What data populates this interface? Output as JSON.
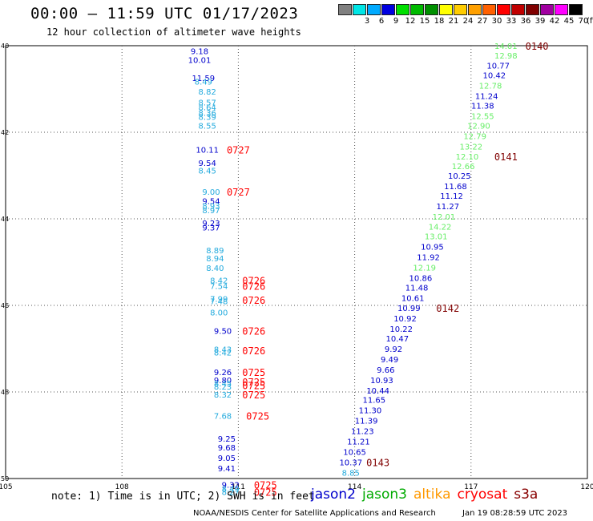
{
  "header": {
    "title": "00:00 – 11:59 UTC 01/17/2023",
    "subtitle": "12 hour collection of altimeter wave heights"
  },
  "legend": {
    "unit": "(ft)",
    "bins": [
      {
        "label": "",
        "color": "#808080"
      },
      {
        "label": "3",
        "color": "#00e5e5"
      },
      {
        "label": "6",
        "color": "#00aaff"
      },
      {
        "label": "9",
        "color": "#0000e0"
      },
      {
        "label": "12",
        "color": "#00e000"
      },
      {
        "label": "15",
        "color": "#00bb00"
      },
      {
        "label": "18",
        "color": "#009000"
      },
      {
        "label": "21",
        "color": "#ffff00"
      },
      {
        "label": "24",
        "color": "#ffcc00"
      },
      {
        "label": "27",
        "color": "#ffa000"
      },
      {
        "label": "30",
        "color": "#ff6000"
      },
      {
        "label": "33",
        "color": "#ff0000"
      },
      {
        "label": "36",
        "color": "#c00000"
      },
      {
        "label": "39",
        "color": "#800000"
      },
      {
        "label": "42",
        "color": "#a000a0"
      },
      {
        "label": "45",
        "color": "#ff00ff"
      },
      {
        "label": "70",
        "color": "#000000"
      }
    ]
  },
  "map": {
    "lon_ticks": [
      "105",
      "108",
      "111",
      "114",
      "117",
      "120"
    ],
    "lat_ticks": [
      "40",
      "42",
      "44",
      "46",
      "48",
      "50"
    ]
  },
  "tracks": [
    {
      "name": "west",
      "points": [
        {
          "lon": 110.0,
          "lat": 40.12,
          "v": "9.18",
          "c": "#0000cc"
        },
        {
          "lon": 110.0,
          "lat": 40.32,
          "v": "10.01",
          "c": "#0000cc"
        },
        {
          "lon": 110.1,
          "lat": 40.74,
          "v": "11.59",
          "c": "#0000cc"
        },
        {
          "lon": 110.1,
          "lat": 40.82,
          "v": "8.49",
          "c": "#22aadd"
        },
        {
          "lon": 110.2,
          "lat": 41.06,
          "v": "8.82",
          "c": "#22aadd"
        },
        {
          "lon": 110.2,
          "lat": 41.31,
          "v": "8.57",
          "c": "#22aadd"
        },
        {
          "lon": 110.2,
          "lat": 41.42,
          "v": "8.64",
          "c": "#22aadd"
        },
        {
          "lon": 110.2,
          "lat": 41.55,
          "v": "8.36",
          "c": "#22aadd"
        },
        {
          "lon": 110.2,
          "lat": 41.64,
          "v": "8.39",
          "c": "#22aadd"
        },
        {
          "lon": 110.2,
          "lat": 41.84,
          "v": "8.55",
          "c": "#22aadd"
        },
        {
          "lon": 110.2,
          "lat": 42.4,
          "v": "10.11",
          "c": "#0000cc"
        },
        {
          "lon": 110.2,
          "lat": 42.7,
          "v": "9.54",
          "c": "#0000cc"
        },
        {
          "lon": 110.2,
          "lat": 42.88,
          "v": "8.45",
          "c": "#22aadd"
        },
        {
          "lon": 110.3,
          "lat": 43.37,
          "v": "9.00",
          "c": "#22aadd"
        },
        {
          "lon": 110.3,
          "lat": 43.58,
          "v": "9.54",
          "c": "#0000cc"
        },
        {
          "lon": 110.3,
          "lat": 43.69,
          "v": "8.93",
          "c": "#22aadd"
        },
        {
          "lon": 110.3,
          "lat": 43.8,
          "v": "8.97",
          "c": "#22aadd"
        },
        {
          "lon": 110.3,
          "lat": 44.09,
          "v": "9.23",
          "c": "#0000cc"
        },
        {
          "lon": 110.3,
          "lat": 44.19,
          "v": "9.37",
          "c": "#0000cc"
        },
        {
          "lon": 110.4,
          "lat": 44.72,
          "v": "8.89",
          "c": "#22aadd"
        },
        {
          "lon": 110.4,
          "lat": 44.91,
          "v": "8.94",
          "c": "#22aadd"
        },
        {
          "lon": 110.4,
          "lat": 45.13,
          "v": "8.40",
          "c": "#22aadd"
        },
        {
          "lon": 110.5,
          "lat": 45.42,
          "v": "8.42",
          "c": "#22aadd"
        },
        {
          "lon": 110.5,
          "lat": 45.55,
          "v": "7.54",
          "c": "#22aadd"
        },
        {
          "lon": 110.5,
          "lat": 45.84,
          "v": "7.99",
          "c": "#22aadd"
        },
        {
          "lon": 110.5,
          "lat": 45.9,
          "v": "7.48",
          "c": "#22aadd"
        },
        {
          "lon": 110.5,
          "lat": 46.16,
          "v": "8.00",
          "c": "#22aadd"
        },
        {
          "lon": 110.6,
          "lat": 46.58,
          "v": "9.50",
          "c": "#0000cc"
        },
        {
          "lon": 110.6,
          "lat": 47.01,
          "v": "8.43",
          "c": "#22aadd"
        },
        {
          "lon": 110.6,
          "lat": 47.08,
          "v": "8.42",
          "c": "#22aadd"
        },
        {
          "lon": 110.6,
          "lat": 47.54,
          "v": "9.26",
          "c": "#0000cc"
        },
        {
          "lon": 110.6,
          "lat": 47.72,
          "v": "9.80",
          "c": "#0000cc"
        },
        {
          "lon": 110.6,
          "lat": 47.8,
          "v": "8.45",
          "c": "#22aadd"
        },
        {
          "lon": 110.6,
          "lat": 47.87,
          "v": "8.23",
          "c": "#22aadd"
        },
        {
          "lon": 110.6,
          "lat": 48.06,
          "v": "8.32",
          "c": "#22aadd"
        },
        {
          "lon": 110.6,
          "lat": 48.55,
          "v": "7.68",
          "c": "#22aadd"
        },
        {
          "lon": 110.7,
          "lat": 49.07,
          "v": "9.25",
          "c": "#0000cc"
        },
        {
          "lon": 110.7,
          "lat": 49.28,
          "v": "9.68",
          "c": "#0000cc"
        },
        {
          "lon": 110.7,
          "lat": 49.52,
          "v": "9.05",
          "c": "#0000cc"
        },
        {
          "lon": 110.7,
          "lat": 49.76,
          "v": "9.41",
          "c": "#0000cc"
        },
        {
          "lon": 110.8,
          "lat": 50.14,
          "v": "9.32",
          "c": "#0000cc"
        },
        {
          "lon": 110.8,
          "lat": 50.23,
          "v": "8.49",
          "c": "#22aadd"
        },
        {
          "lon": 110.8,
          "lat": 50.31,
          "v": "8.27",
          "c": "#22aadd"
        }
      ],
      "times": [
        {
          "lon": 111.0,
          "lat": 42.4,
          "t": "0727",
          "c": "#ff0000"
        },
        {
          "lon": 111.0,
          "lat": 43.37,
          "t": "0727",
          "c": "#ff0000"
        },
        {
          "lon": 111.4,
          "lat": 45.42,
          "t": "0726",
          "c": "#ff0000"
        },
        {
          "lon": 111.4,
          "lat": 45.55,
          "t": "0726",
          "c": "#ff0000"
        },
        {
          "lon": 111.4,
          "lat": 45.87,
          "t": "0726",
          "c": "#ff0000"
        },
        {
          "lon": 111.4,
          "lat": 46.58,
          "t": "0726",
          "c": "#ff0000"
        },
        {
          "lon": 111.4,
          "lat": 47.04,
          "t": "0726",
          "c": "#ff0000"
        },
        {
          "lon": 111.4,
          "lat": 47.54,
          "t": "0725",
          "c": "#ff0000"
        },
        {
          "lon": 111.4,
          "lat": 47.76,
          "t": "0725",
          "c": "#ff0000"
        },
        {
          "lon": 111.4,
          "lat": 47.84,
          "t": "0725",
          "c": "#ff0000"
        },
        {
          "lon": 111.4,
          "lat": 48.06,
          "t": "0725",
          "c": "#ff0000"
        },
        {
          "lon": 111.5,
          "lat": 48.55,
          "t": "0725",
          "c": "#ff0000"
        },
        {
          "lon": 111.7,
          "lat": 50.14,
          "t": "0725",
          "c": "#ff0000"
        },
        {
          "lon": 111.7,
          "lat": 50.31,
          "t": "0725",
          "c": "#ff0000"
        }
      ]
    },
    {
      "name": "east",
      "points": [
        {
          "lon": 117.9,
          "lat": 40.0,
          "v": "14.01",
          "c": "#66ee66"
        },
        {
          "lon": 117.9,
          "lat": 40.22,
          "v": "12.98",
          "c": "#66ee66"
        },
        {
          "lon": 117.7,
          "lat": 40.45,
          "v": "10.77",
          "c": "#0000cc"
        },
        {
          "lon": 117.6,
          "lat": 40.68,
          "v": "10.42",
          "c": "#0000cc"
        },
        {
          "lon": 117.5,
          "lat": 40.92,
          "v": "12.78",
          "c": "#66ee66"
        },
        {
          "lon": 117.4,
          "lat": 41.16,
          "v": "11.24",
          "c": "#0000cc"
        },
        {
          "lon": 117.3,
          "lat": 41.38,
          "v": "11.38",
          "c": "#0000cc"
        },
        {
          "lon": 117.3,
          "lat": 41.62,
          "v": "12.55",
          "c": "#66ee66"
        },
        {
          "lon": 117.2,
          "lat": 41.84,
          "v": "12.90",
          "c": "#66ee66"
        },
        {
          "lon": 117.1,
          "lat": 42.08,
          "v": "12.79",
          "c": "#66ee66"
        },
        {
          "lon": 117.0,
          "lat": 42.32,
          "v": "13.22",
          "c": "#66ee66"
        },
        {
          "lon": 116.9,
          "lat": 42.56,
          "v": "12.10",
          "c": "#66ee66"
        },
        {
          "lon": 116.8,
          "lat": 42.78,
          "v": "12.66",
          "c": "#66ee66"
        },
        {
          "lon": 116.7,
          "lat": 43.0,
          "v": "10.25",
          "c": "#0000cc"
        },
        {
          "lon": 116.6,
          "lat": 43.24,
          "v": "11.68",
          "c": "#0000cc"
        },
        {
          "lon": 116.5,
          "lat": 43.46,
          "v": "11.12",
          "c": "#0000cc"
        },
        {
          "lon": 116.4,
          "lat": 43.7,
          "v": "11.27",
          "c": "#0000cc"
        },
        {
          "lon": 116.3,
          "lat": 43.94,
          "v": "12.01",
          "c": "#66ee66"
        },
        {
          "lon": 116.2,
          "lat": 44.18,
          "v": "14.22",
          "c": "#66ee66"
        },
        {
          "lon": 116.1,
          "lat": 44.4,
          "v": "13.01",
          "c": "#66ee66"
        },
        {
          "lon": 116.0,
          "lat": 44.64,
          "v": "10.95",
          "c": "#0000cc"
        },
        {
          "lon": 115.9,
          "lat": 44.88,
          "v": "11.92",
          "c": "#0000cc"
        },
        {
          "lon": 115.8,
          "lat": 45.12,
          "v": "12.19",
          "c": "#66ee66"
        },
        {
          "lon": 115.7,
          "lat": 45.36,
          "v": "10.86",
          "c": "#0000cc"
        },
        {
          "lon": 115.6,
          "lat": 45.58,
          "v": "11.48",
          "c": "#0000cc"
        },
        {
          "lon": 115.5,
          "lat": 45.82,
          "v": "10.61",
          "c": "#0000cc"
        },
        {
          "lon": 115.4,
          "lat": 46.06,
          "v": "10.99",
          "c": "#0000cc"
        },
        {
          "lon": 115.3,
          "lat": 46.3,
          "v": "10.92",
          "c": "#0000cc"
        },
        {
          "lon": 115.2,
          "lat": 46.54,
          "v": "10.22",
          "c": "#0000cc"
        },
        {
          "lon": 115.1,
          "lat": 46.76,
          "v": "10.47",
          "c": "#0000cc"
        },
        {
          "lon": 115.0,
          "lat": 47.0,
          "v": "9.92",
          "c": "#0000cc"
        },
        {
          "lon": 114.9,
          "lat": 47.24,
          "v": "9.49",
          "c": "#0000cc"
        },
        {
          "lon": 114.8,
          "lat": 47.48,
          "v": "9.66",
          "c": "#0000cc"
        },
        {
          "lon": 114.7,
          "lat": 47.72,
          "v": "10.93",
          "c": "#0000cc"
        },
        {
          "lon": 114.6,
          "lat": 47.96,
          "v": "10.44",
          "c": "#0000cc"
        },
        {
          "lon": 114.5,
          "lat": 48.18,
          "v": "11.65",
          "c": "#0000cc"
        },
        {
          "lon": 114.4,
          "lat": 48.42,
          "v": "11.30",
          "c": "#0000cc"
        },
        {
          "lon": 114.3,
          "lat": 48.66,
          "v": "11.39",
          "c": "#0000cc"
        },
        {
          "lon": 114.2,
          "lat": 48.9,
          "v": "11.23",
          "c": "#0000cc"
        },
        {
          "lon": 114.1,
          "lat": 49.14,
          "v": "11.21",
          "c": "#0000cc"
        },
        {
          "lon": 114.0,
          "lat": 49.38,
          "v": "10.65",
          "c": "#0000cc"
        },
        {
          "lon": 113.9,
          "lat": 49.62,
          "v": "10.37",
          "c": "#0000cc"
        },
        {
          "lon": 113.9,
          "lat": 49.86,
          "v": "8.85",
          "c": "#22aadd"
        }
      ],
      "times": [
        {
          "lon": 118.7,
          "lat": 40.0,
          "t": "0140",
          "c": "#800000"
        },
        {
          "lon": 117.9,
          "lat": 42.56,
          "t": "0141",
          "c": "#800000"
        },
        {
          "lon": 116.4,
          "lat": 46.06,
          "t": "0142",
          "c": "#800000"
        },
        {
          "lon": 114.6,
          "lat": 49.62,
          "t": "0143",
          "c": "#800000"
        }
      ]
    }
  ],
  "footer": {
    "note": "note: 1) Time is in UTC; 2) SWH is in feet",
    "satellites": [
      {
        "name": "jason2",
        "color": "#0000cc"
      },
      {
        "name": "jason3",
        "color": "#00aa00"
      },
      {
        "name": "altika",
        "color": "#ff9900"
      },
      {
        "name": "cryosat",
        "color": "#ff0000"
      },
      {
        "name": "s3a",
        "color": "#880000"
      }
    ],
    "credit": "NOAA/NESDIS Center for Satellite Applications and Research",
    "generated": "Jan 19 08:28:59 UTC 2023"
  }
}
